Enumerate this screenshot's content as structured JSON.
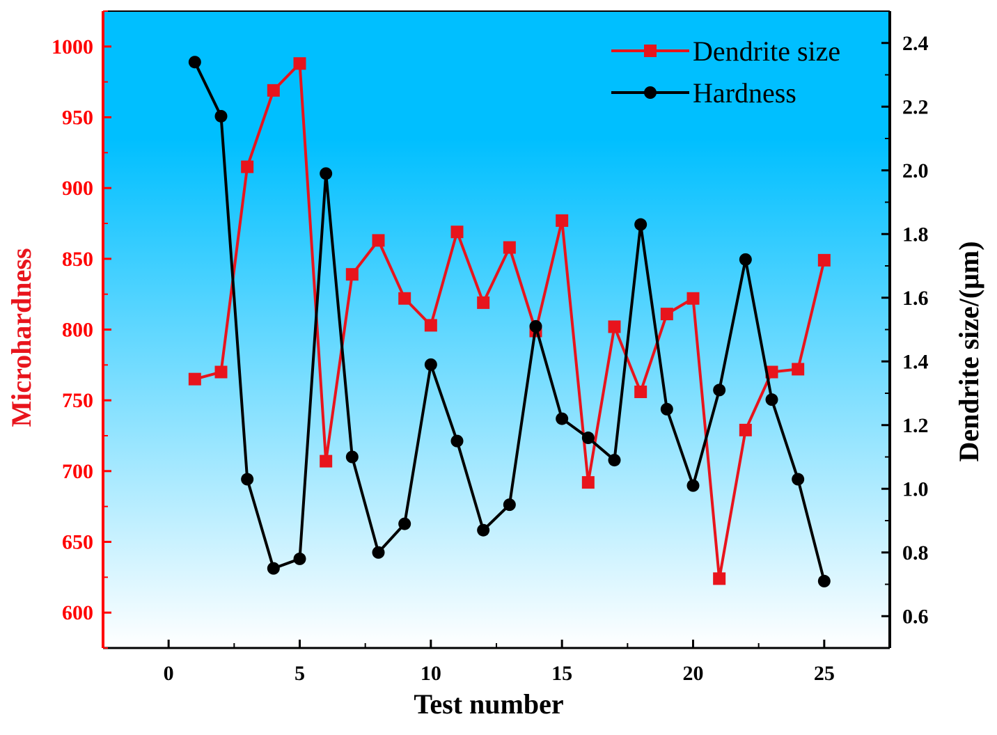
{
  "chart_data": {
    "type": "line",
    "title": "",
    "xlabel": "Test number",
    "ylabel_left": "Microhardness",
    "ylabel_right": "Dendrite size/(μm)",
    "xlim": [
      -2.5,
      27.5
    ],
    "ylim_left": [
      575,
      1025
    ],
    "ylim_right": [
      0.5,
      2.5
    ],
    "x_ticks": [
      0,
      5,
      10,
      15,
      20,
      25
    ],
    "y_left_ticks": [
      600,
      650,
      700,
      750,
      800,
      850,
      900,
      950,
      1000
    ],
    "y_right_ticks": [
      "0.6",
      "0.8",
      "1.0",
      "1.2",
      "1.4",
      "1.6",
      "1.8",
      "2.0",
      "2.2",
      "2.4"
    ],
    "legend_position": "top-right",
    "colors": {
      "background_top": "#00bfff",
      "background_bottom": "#ffffff",
      "left_axis": "#ff0000",
      "right_axis": "#000000",
      "dendrite": "#e8141c",
      "hardness": "#000000"
    },
    "x": [
      1,
      2,
      3,
      4,
      5,
      6,
      7,
      8,
      9,
      10,
      11,
      12,
      13,
      14,
      15,
      16,
      17,
      18,
      19,
      20,
      21,
      22,
      23,
      24,
      25
    ],
    "series": [
      {
        "name": "Dendrite size",
        "axis": "left",
        "marker": "square",
        "values": [
          765,
          770,
          915,
          969,
          988,
          707,
          839,
          863,
          822,
          803,
          869,
          819,
          858,
          799,
          877,
          692,
          802,
          756,
          811,
          822,
          624,
          729,
          770,
          772,
          849
        ]
      },
      {
        "name": "Hardness",
        "axis": "right",
        "marker": "circle",
        "values": [
          2.34,
          2.17,
          1.03,
          0.75,
          0.78,
          1.99,
          1.1,
          0.8,
          0.89,
          1.39,
          1.15,
          0.87,
          0.95,
          1.51,
          1.22,
          1.16,
          1.09,
          1.83,
          1.25,
          1.01,
          1.31,
          1.72,
          1.28,
          1.03,
          0.71
        ]
      }
    ]
  }
}
